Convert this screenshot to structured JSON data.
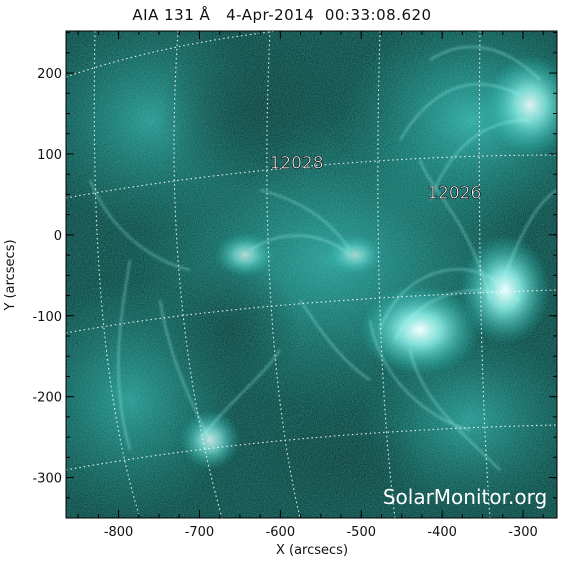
{
  "title": "AIA 131 Å   4-Apr-2014  00:33:08.620",
  "axes": {
    "xlabel": "X (arcsecs)",
    "ylabel": "Y (arcsecs)",
    "xlim": [
      -865,
      -258
    ],
    "ylim": [
      -350,
      252
    ],
    "xticks": [
      "-800",
      "-700",
      "-600",
      "-500",
      "-400",
      "-300"
    ],
    "xtick_values": [
      -800,
      -700,
      -600,
      -500,
      -400,
      -300
    ],
    "yticks": [
      "200",
      "100",
      "0",
      "-100",
      "-200",
      "-300"
    ],
    "ytick_values": [
      200,
      100,
      0,
      -100,
      -200,
      -300
    ]
  },
  "regions": [
    {
      "label": "12028",
      "x": -580,
      "y": 82
    },
    {
      "label": "12026",
      "x": -385,
      "y": 45
    }
  ],
  "watermark": "SolarMonitor.org",
  "colors": {
    "background": "#03312d",
    "plasma": "#1fc7bd",
    "bright": "#e8fffd",
    "grid": "#ffffff"
  }
}
